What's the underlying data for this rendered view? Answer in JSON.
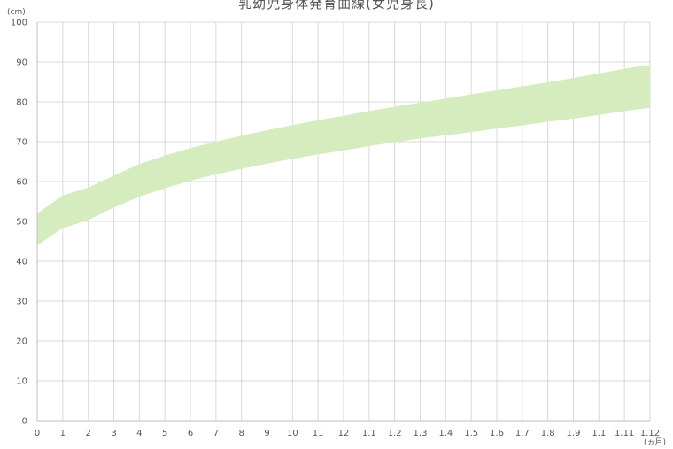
{
  "chart_data": {
    "type": "area",
    "title": "乳幼児身体発育曲線(女児身長)",
    "y_unit": "(cm)",
    "x_unit": "(ヵ月)",
    "ylim": [
      0,
      100
    ],
    "y_ticks": [
      "0",
      "10",
      "20",
      "30",
      "40",
      "50",
      "60",
      "70",
      "80",
      "90",
      "100"
    ],
    "categories": [
      "0",
      "1",
      "2",
      "3",
      "4",
      "5",
      "6",
      "7",
      "8",
      "9",
      "10",
      "11",
      "12",
      "1.1",
      "1.2",
      "1.3",
      "1.4",
      "1.5",
      "1.6",
      "1.7",
      "1.8",
      "1.9",
      "1.1",
      "1.11",
      "1.12"
    ],
    "series": [
      {
        "role": "lower",
        "values": [
          44.0,
          48.3,
          50.3,
          53.5,
          56.2,
          58.3,
          60.2,
          61.8,
          63.2,
          64.5,
          65.7,
          66.8,
          67.8,
          68.9,
          69.9,
          70.8,
          71.6,
          72.4,
          73.3,
          74.1,
          75.0,
          75.8,
          76.7,
          77.7,
          78.5
        ]
      },
      {
        "role": "upper",
        "values": [
          52.0,
          56.5,
          58.5,
          61.5,
          64.4,
          66.5,
          68.4,
          70.0,
          71.5,
          72.9,
          74.2,
          75.4,
          76.5,
          77.7,
          78.8,
          79.8,
          80.8,
          81.9,
          82.9,
          83.9,
          84.9,
          86.0,
          87.1,
          88.3,
          89.3
        ]
      }
    ],
    "fill_color": "#d4ecbe",
    "grid": true,
    "grid_color": "#d9d9d9",
    "axis_color": "#bfbfbf",
    "text_color": "#555555"
  }
}
